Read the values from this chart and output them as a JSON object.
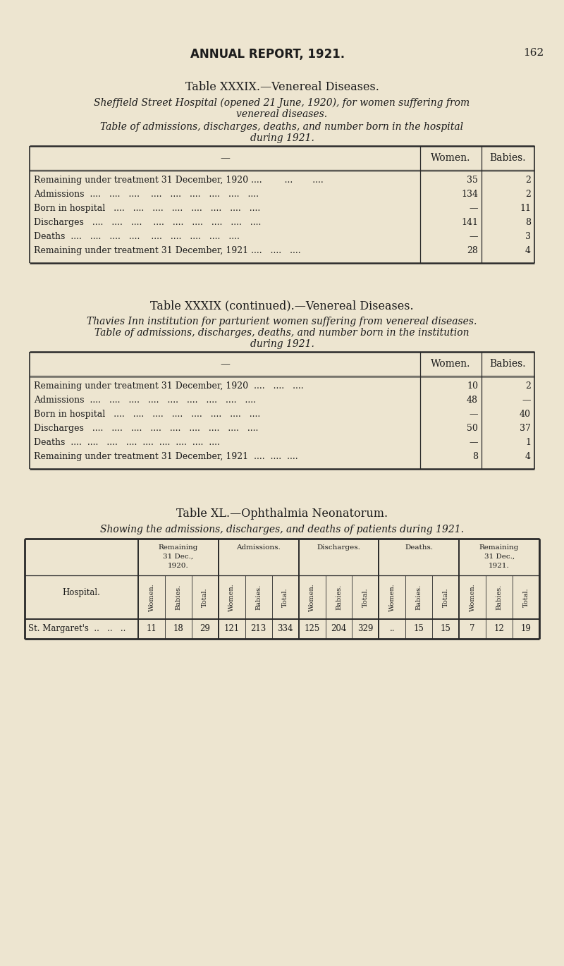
{
  "bg_color": "#ede5d0",
  "page_header": "ANNUAL REPORT, 1921.",
  "page_number": "162",
  "table1": {
    "title": "Table XXXIX.—Venereal Diseases.",
    "sub1": "Sheffield Street Hospital (opened 21 June, 1920), for women suffering from",
    "sub2": "venereal diseases.",
    "sub3": "Table of admissions, discharges, deaths, and number born in the hospital",
    "sub4": "during 1921.",
    "col_headers": [
      "Women.",
      "Babies."
    ],
    "rows": [
      [
        "Remaining under treatment 31 December, 1920 ....        ...       ....",
        "35",
        "2"
      ],
      [
        "Admissions  ....   ....   ....    ....   ....   ....   ....   ....   ....",
        "134",
        "2"
      ],
      [
        "Born in hospital   ....   ....   ....   ....   ....   ....   ....   ....",
        "—",
        "11"
      ],
      [
        "Discharges   ....   ....   ....    ....   ....   ....   ....   ....   ....",
        "141",
        "8"
      ],
      [
        "Deaths  ....   ....   ....   ....    ....   ....   ....   ....   ....",
        "—",
        "3"
      ],
      [
        "Remaining under treatment 31 December, 1921 ....   ....   ....",
        "28",
        "4"
      ]
    ]
  },
  "table2": {
    "title": "Table XXXIX (continued).—Venereal Diseases.",
    "sub1": "Thavies Inn institution for parturient women suffering from venereal diseases.",
    "sub2": "Table of admissions, discharges, deaths, and number born in the institution",
    "sub3": "during 1921.",
    "col_headers": [
      "Women.",
      "Babies."
    ],
    "rows": [
      [
        "Remaining under treatment 31 December, 1920  ....   ....   ....",
        "10",
        "2"
      ],
      [
        "Admissions  ....   ....   ....   ....   ....   ....   ....   ....   ....",
        "48",
        "—"
      ],
      [
        "Born in hospital   ....   ....   ....   ....   ....   ....   ....   ....",
        "—",
        "40"
      ],
      [
        "Discharges   ....   ....   ....   ....   ....   ....   ....   ....   ....",
        "50",
        "37"
      ],
      [
        "Deaths  ....  ....   ....   ....  ....  ....  ....  ....  ....",
        "—",
        "1"
      ],
      [
        "Remaining under treatment 31 December, 1921  ....  ....  ....",
        "8",
        "4"
      ]
    ]
  },
  "table3": {
    "title": "Table XL.—Ophthalmia Neonatorum.",
    "subtitle": "Showing the admissions, discharges, and deaths of patients during 1921.",
    "group_headers": [
      "Remaining\n31 Dec.,\n1920.",
      "Admissions.",
      "Discharges.",
      "Deaths.",
      "Remaining\n31 Dec.,\n1921."
    ],
    "sub_headers": [
      "Women.",
      "Babies.",
      "Total.",
      "Women.",
      "Babies.",
      "Total.",
      "Women.",
      "Babies.",
      "Total.",
      "Women.",
      "Babies.",
      "Total.",
      "Women.",
      "Babies.",
      "Total."
    ],
    "hospital_col": "Hospital.",
    "data_row": [
      "St. Margaret's  ..   ..   ..",
      "11",
      "18",
      "29",
      "121",
      "213",
      "334",
      "125",
      "204",
      "329",
      "..",
      "15",
      "15",
      "7",
      "12",
      "19"
    ]
  }
}
